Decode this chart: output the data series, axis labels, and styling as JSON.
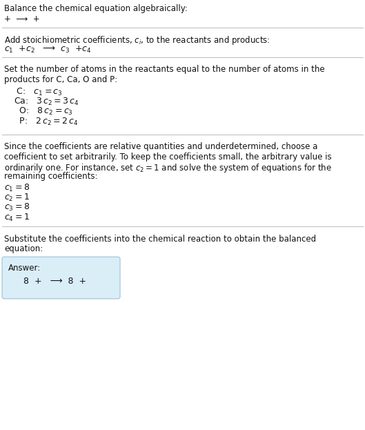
{
  "title": "Balance the chemical equation algebraically:",
  "line1": "+  ⟶  +",
  "section2_header": "Add stoichiometric coefficients, $c_i$, to the reactants and products:",
  "section2_line": "$c_1$  +$c_2$   ⟶  $c_3$  +$c_4$",
  "section3_header_lines": [
    "Set the number of atoms in the reactants equal to the number of atoms in the",
    "products for C, Ca, O and P:"
  ],
  "section3_lines": [
    " C:   $c_1 = c_3$",
    "Ca:   $3\\,c_2 = 3\\,c_4$",
    "  O:   $8\\,c_2 = c_3$",
    "  P:   $2\\,c_2 = 2\\,c_4$"
  ],
  "section4_header_lines": [
    "Since the coefficients are relative quantities and underdetermined, choose a",
    "coefficient to set arbitrarily. To keep the coefficients small, the arbitrary value is",
    "ordinarily one. For instance, set $c_2 = 1$ and solve the system of equations for the",
    "remaining coefficients:"
  ],
  "section4_lines": [
    "$c_1 = 8$",
    "$c_2 = 1$",
    "$c_3 = 8$",
    "$c_4 = 1$"
  ],
  "section5_header_lines": [
    "Substitute the coefficients into the chemical reaction to obtain the balanced",
    "equation:"
  ],
  "answer_label": "Answer:",
  "answer_line": "  8  +   ⟶  8  +",
  "bg_color": "#ffffff",
  "text_color": "#111111",
  "answer_box_color": "#daeef8",
  "answer_box_edge": "#aacce0",
  "divider_color": "#bbbbbb",
  "fs": 8.5,
  "fs_math": 9.0,
  "lh_pts": 13.0
}
